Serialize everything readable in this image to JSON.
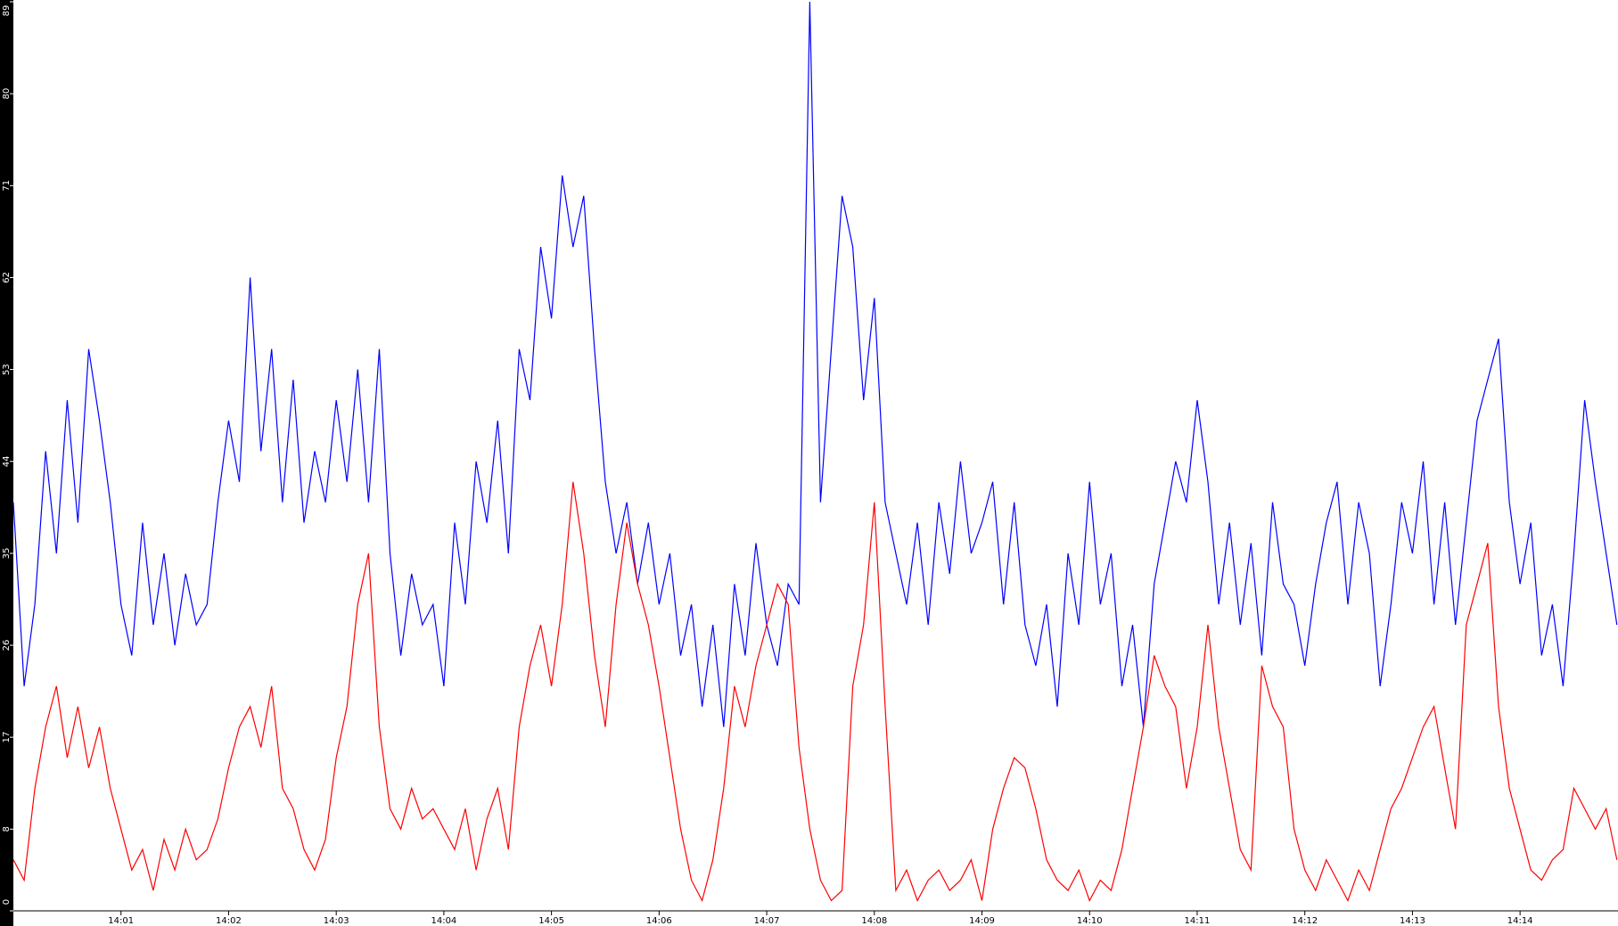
{
  "chart_data": {
    "type": "line",
    "x": [
      0,
      0.1,
      0.2,
      0.3,
      0.4,
      0.5,
      0.6,
      0.7,
      0.8,
      0.9,
      1,
      1.1,
      1.2,
      1.3,
      1.4,
      1.5,
      1.6,
      1.7,
      1.8,
      1.9,
      2,
      2.1,
      2.2,
      2.3,
      2.4,
      2.5,
      2.6,
      2.7,
      2.8,
      2.9,
      3,
      3.1,
      3.2,
      3.3,
      3.4,
      3.5,
      3.6,
      3.7,
      3.8,
      3.9,
      4,
      4.1,
      4.2,
      4.3,
      4.4,
      4.5,
      4.6,
      4.7,
      4.8,
      4.9,
      5,
      5.1,
      5.2,
      5.3,
      5.4,
      5.5,
      5.6,
      5.7,
      5.8,
      5.9,
      6,
      6.1,
      6.2,
      6.3,
      6.4,
      6.5,
      6.6,
      6.7,
      6.8,
      6.9,
      7,
      7.1,
      7.2,
      7.3,
      7.4,
      7.5,
      7.6,
      7.7,
      7.8,
      7.9,
      8,
      8.1,
      8.2,
      8.3,
      8.4,
      8.5,
      8.6,
      8.7,
      8.8,
      8.9,
      9,
      9.1,
      9.2,
      9.3,
      9.4,
      9.5,
      9.6,
      9.7,
      9.8,
      9.9,
      10,
      10.1,
      10.2,
      10.3,
      10.4,
      10.5,
      10.6,
      10.7,
      10.8,
      10.9,
      11,
      11.1,
      11.2,
      11.3,
      11.4,
      11.5,
      11.6,
      11.7,
      11.8,
      11.9,
      12,
      12.1,
      12.2,
      12.3,
      12.4,
      12.5,
      12.6,
      12.7,
      12.8,
      12.9,
      13,
      13.1,
      13.2,
      13.3,
      13.4,
      13.5,
      13.6,
      13.7,
      13.8,
      13.9,
      14,
      14.1,
      14.2,
      14.3,
      14.4,
      14.5,
      14.6,
      14.7,
      14.8,
      14.9
    ],
    "series": [
      {
        "color": "#0000ff",
        "values": [
          40,
          22,
          30,
          45,
          35,
          50,
          38,
          55,
          48,
          40,
          30,
          25,
          38,
          28,
          35,
          26,
          33,
          28,
          30,
          40,
          48,
          42,
          62,
          45,
          55,
          40,
          52,
          38,
          45,
          40,
          50,
          42,
          53,
          40,
          55,
          35,
          25,
          33,
          28,
          30,
          22,
          38,
          30,
          44,
          38,
          48,
          35,
          55,
          50,
          65,
          58,
          72,
          65,
          70,
          55,
          42,
          35,
          40,
          32,
          38,
          30,
          35,
          25,
          30,
          20,
          28,
          18,
          32,
          25,
          36,
          28,
          24,
          32,
          30,
          89,
          40,
          55,
          70,
          65,
          50,
          60,
          40,
          35,
          30,
          38,
          28,
          40,
          33,
          44,
          35,
          38,
          42,
          30,
          40,
          28,
          24,
          30,
          20,
          35,
          28,
          42,
          30,
          35,
          22,
          28,
          18,
          32,
          38,
          44,
          40,
          50,
          42,
          30,
          38,
          28,
          36,
          25,
          40,
          32,
          30,
          24,
          32,
          38,
          42,
          30,
          40,
          35,
          22,
          30,
          40,
          35,
          44,
          30,
          40,
          28,
          38,
          48,
          52,
          56,
          40,
          32,
          38,
          25,
          30,
          22,
          35,
          50,
          42,
          35,
          28
        ]
      },
      {
        "color": "#ff0000",
        "values": [
          5,
          3,
          12,
          18,
          22,
          15,
          20,
          14,
          18,
          12,
          8,
          4,
          6,
          2,
          7,
          4,
          8,
          5,
          6,
          9,
          14,
          18,
          20,
          16,
          22,
          12,
          10,
          6,
          4,
          7,
          15,
          20,
          30,
          35,
          18,
          10,
          8,
          12,
          9,
          10,
          8,
          6,
          10,
          4,
          9,
          12,
          6,
          18,
          24,
          28,
          22,
          30,
          42,
          35,
          25,
          18,
          30,
          38,
          32,
          28,
          22,
          15,
          8,
          3,
          1,
          5,
          12,
          22,
          18,
          24,
          28,
          32,
          30,
          16,
          8,
          3,
          1,
          2,
          22,
          28,
          40,
          20,
          2,
          4,
          1,
          3,
          4,
          2,
          3,
          5,
          1,
          8,
          12,
          15,
          14,
          10,
          5,
          3,
          2,
          4,
          1,
          3,
          2,
          6,
          12,
          18,
          25,
          22,
          20,
          12,
          18,
          28,
          18,
          12,
          6,
          4,
          24,
          20,
          18,
          8,
          4,
          2,
          5,
          3,
          1,
          4,
          2,
          6,
          10,
          12,
          15,
          18,
          20,
          14,
          8,
          28,
          32,
          36,
          20,
          12,
          8,
          4,
          3,
          5,
          6,
          12,
          10,
          8,
          10,
          5
        ]
      }
    ],
    "xlim": [
      0,
      14.91
    ],
    "xticks": [
      {
        "value": 1,
        "label": "14:01"
      },
      {
        "value": 2,
        "label": "14:02"
      },
      {
        "value": 3,
        "label": "14:03"
      },
      {
        "value": 4,
        "label": "14:04"
      },
      {
        "value": 5,
        "label": "14:05"
      },
      {
        "value": 6,
        "label": "14:06"
      },
      {
        "value": 7,
        "label": "14:07"
      },
      {
        "value": 8,
        "label": "14:08"
      },
      {
        "value": 9,
        "label": "14:09"
      },
      {
        "value": 10,
        "label": "14:10"
      },
      {
        "value": 11,
        "label": "14:11"
      },
      {
        "value": 12,
        "label": "14:12"
      },
      {
        "value": 13,
        "label": "14:13"
      },
      {
        "value": 14,
        "label": "14:14"
      }
    ],
    "ylim": [
      0,
      89
    ],
    "yticks": [
      0,
      8,
      17,
      26,
      35,
      44,
      53,
      62,
      71,
      80,
      89
    ]
  }
}
